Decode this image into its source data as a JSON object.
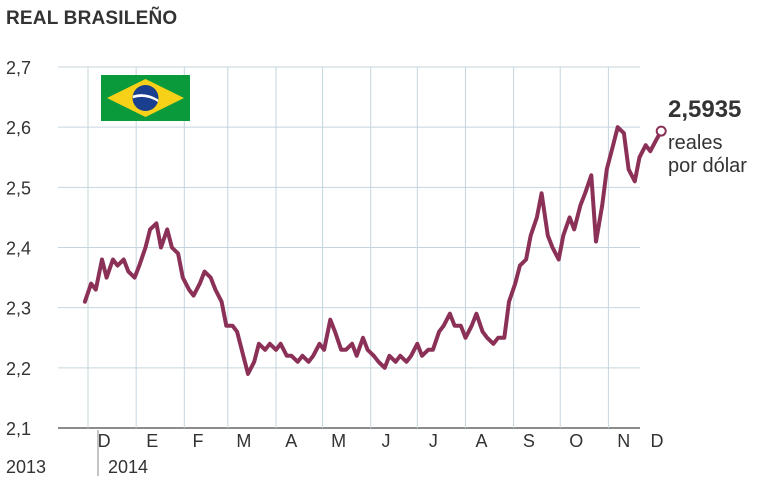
{
  "title": "REAL BRASILEÑO",
  "last_value_label": "2,5935",
  "unit_label": "reales por dólar",
  "colors": {
    "line": "#8b3157",
    "grid": "#c5d5de",
    "text": "#333333",
    "flag_green": "#0a9a3c",
    "flag_yellow": "#f7d117",
    "flag_blue": "#1b3f8f"
  },
  "chart_data": {
    "type": "line",
    "title": "REAL BRASILEÑO",
    "xlabel": "",
    "ylabel": "",
    "ylim": [
      2.1,
      2.7
    ],
    "y_ticks": [
      "2,1",
      "2,2",
      "2,3",
      "2,4",
      "2,5",
      "2,6",
      "2,7"
    ],
    "month_ticks": [
      "D",
      "E",
      "F",
      "M",
      "A",
      "M",
      "J",
      "J",
      "A",
      "S",
      "O",
      "N",
      "D"
    ],
    "year_labels": [
      "2013",
      "2014"
    ],
    "grid": true,
    "series": [
      {
        "x": [
          "2013-11-29",
          "2013-12-03",
          "2013-12-06",
          "2013-12-10",
          "2013-12-13",
          "2013-12-17",
          "2013-12-20",
          "2013-12-24",
          "2013-12-27",
          "2013-12-31",
          "2014-01-03",
          "2014-01-07",
          "2014-01-10",
          "2014-01-14",
          "2014-01-17",
          "2014-01-21",
          "2014-01-24",
          "2014-01-28",
          "2014-01-31",
          "2014-02-04",
          "2014-02-07",
          "2014-02-11",
          "2014-02-14",
          "2014-02-18",
          "2014-02-21",
          "2014-02-25",
          "2014-02-28",
          "2014-03-04",
          "2014-03-07",
          "2014-03-11",
          "2014-03-14",
          "2014-03-18",
          "2014-03-21",
          "2014-03-25",
          "2014-03-28",
          "2014-04-01",
          "2014-04-04",
          "2014-04-08",
          "2014-04-11",
          "2014-04-15",
          "2014-04-18",
          "2014-04-22",
          "2014-04-25",
          "2014-04-29",
          "2014-05-02",
          "2014-05-06",
          "2014-05-09",
          "2014-05-13",
          "2014-05-16",
          "2014-05-20",
          "2014-05-23",
          "2014-05-27",
          "2014-05-30",
          "2014-06-03",
          "2014-06-06",
          "2014-06-10",
          "2014-06-13",
          "2014-06-17",
          "2014-06-20",
          "2014-06-24",
          "2014-06-27",
          "2014-07-01",
          "2014-07-04",
          "2014-07-08",
          "2014-07-11",
          "2014-07-15",
          "2014-07-18",
          "2014-07-22",
          "2014-07-25",
          "2014-07-29",
          "2014-08-01",
          "2014-08-05",
          "2014-08-08",
          "2014-08-12",
          "2014-08-15",
          "2014-08-19",
          "2014-08-22",
          "2014-08-26",
          "2014-08-29",
          "2014-09-02",
          "2014-09-05",
          "2014-09-09",
          "2014-09-12",
          "2014-09-16",
          "2014-09-19",
          "2014-09-23",
          "2014-09-26",
          "2014-09-30",
          "2014-10-03",
          "2014-10-07",
          "2014-10-10",
          "2014-10-14",
          "2014-10-17",
          "2014-10-21",
          "2014-10-24",
          "2014-10-28",
          "2014-10-31",
          "2014-11-04",
          "2014-11-07",
          "2014-11-11",
          "2014-11-14",
          "2014-11-18",
          "2014-11-21",
          "2014-11-25",
          "2014-11-28",
          "2014-12-02",
          "2014-12-05"
        ],
        "y": [
          2.31,
          2.34,
          2.33,
          2.38,
          2.35,
          2.38,
          2.37,
          2.38,
          2.36,
          2.35,
          2.37,
          2.4,
          2.43,
          2.44,
          2.4,
          2.43,
          2.4,
          2.39,
          2.35,
          2.33,
          2.32,
          2.34,
          2.36,
          2.35,
          2.33,
          2.31,
          2.27,
          2.27,
          2.26,
          2.22,
          2.19,
          2.21,
          2.24,
          2.23,
          2.24,
          2.23,
          2.24,
          2.22,
          2.22,
          2.21,
          2.22,
          2.21,
          2.22,
          2.24,
          2.23,
          2.28,
          2.26,
          2.23,
          2.23,
          2.24,
          2.22,
          2.25,
          2.23,
          2.22,
          2.21,
          2.2,
          2.22,
          2.21,
          2.22,
          2.21,
          2.22,
          2.24,
          2.22,
          2.23,
          2.23,
          2.26,
          2.27,
          2.29,
          2.27,
          2.27,
          2.25,
          2.27,
          2.29,
          2.26,
          2.25,
          2.24,
          2.25,
          2.25,
          2.31,
          2.34,
          2.37,
          2.38,
          2.42,
          2.45,
          2.49,
          2.42,
          2.4,
          2.38,
          2.42,
          2.45,
          2.43,
          2.47,
          2.49,
          2.52,
          2.41,
          2.47,
          2.53,
          2.57,
          2.6,
          2.59,
          2.53,
          2.51,
          2.55,
          2.57,
          2.56,
          2.58,
          2.5935
        ]
      }
    ],
    "last_value": 2.5935
  }
}
